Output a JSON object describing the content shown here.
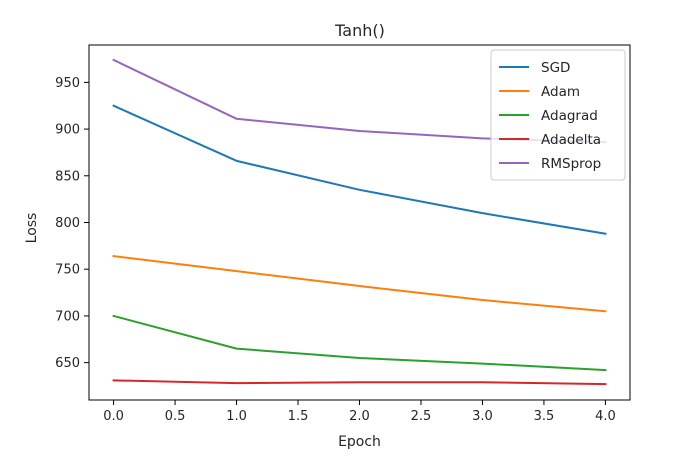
{
  "chart_data": {
    "type": "line",
    "title": "Tanh()",
    "xlabel": "Epoch",
    "ylabel": "Loss",
    "x": [
      0,
      1,
      2,
      3,
      4
    ],
    "xlim": [
      -0.2,
      4.2
    ],
    "ylim": [
      610,
      990
    ],
    "xticks": [
      0,
      0.5,
      1,
      1.5,
      2,
      2.5,
      3,
      3.5,
      4
    ],
    "xtick_labels": [
      "0.0",
      "0.5",
      "1.0",
      "1.5",
      "2.0",
      "2.5",
      "3.0",
      "3.5",
      "4.0"
    ],
    "yticks": [
      650,
      700,
      750,
      800,
      850,
      900,
      950
    ],
    "ytick_labels": [
      "650",
      "700",
      "750",
      "800",
      "850",
      "900",
      "950"
    ],
    "grid": false,
    "legend_position": "top-right",
    "series": [
      {
        "name": "SGD",
        "color": "#1f77b4",
        "values": [
          925,
          866,
          835,
          810,
          788
        ]
      },
      {
        "name": "Adam",
        "color": "#ff7f0e",
        "values": [
          764,
          748,
          732,
          717,
          705
        ]
      },
      {
        "name": "Adagrad",
        "color": "#2ca02c",
        "values": [
          700,
          665,
          655,
          649,
          642
        ]
      },
      {
        "name": "Adadelta",
        "color": "#d62728",
        "values": [
          631,
          628,
          629,
          629,
          627
        ]
      },
      {
        "name": "RMSprop",
        "color": "#9467bd",
        "values": [
          974,
          911,
          898,
          890,
          886
        ]
      }
    ]
  }
}
